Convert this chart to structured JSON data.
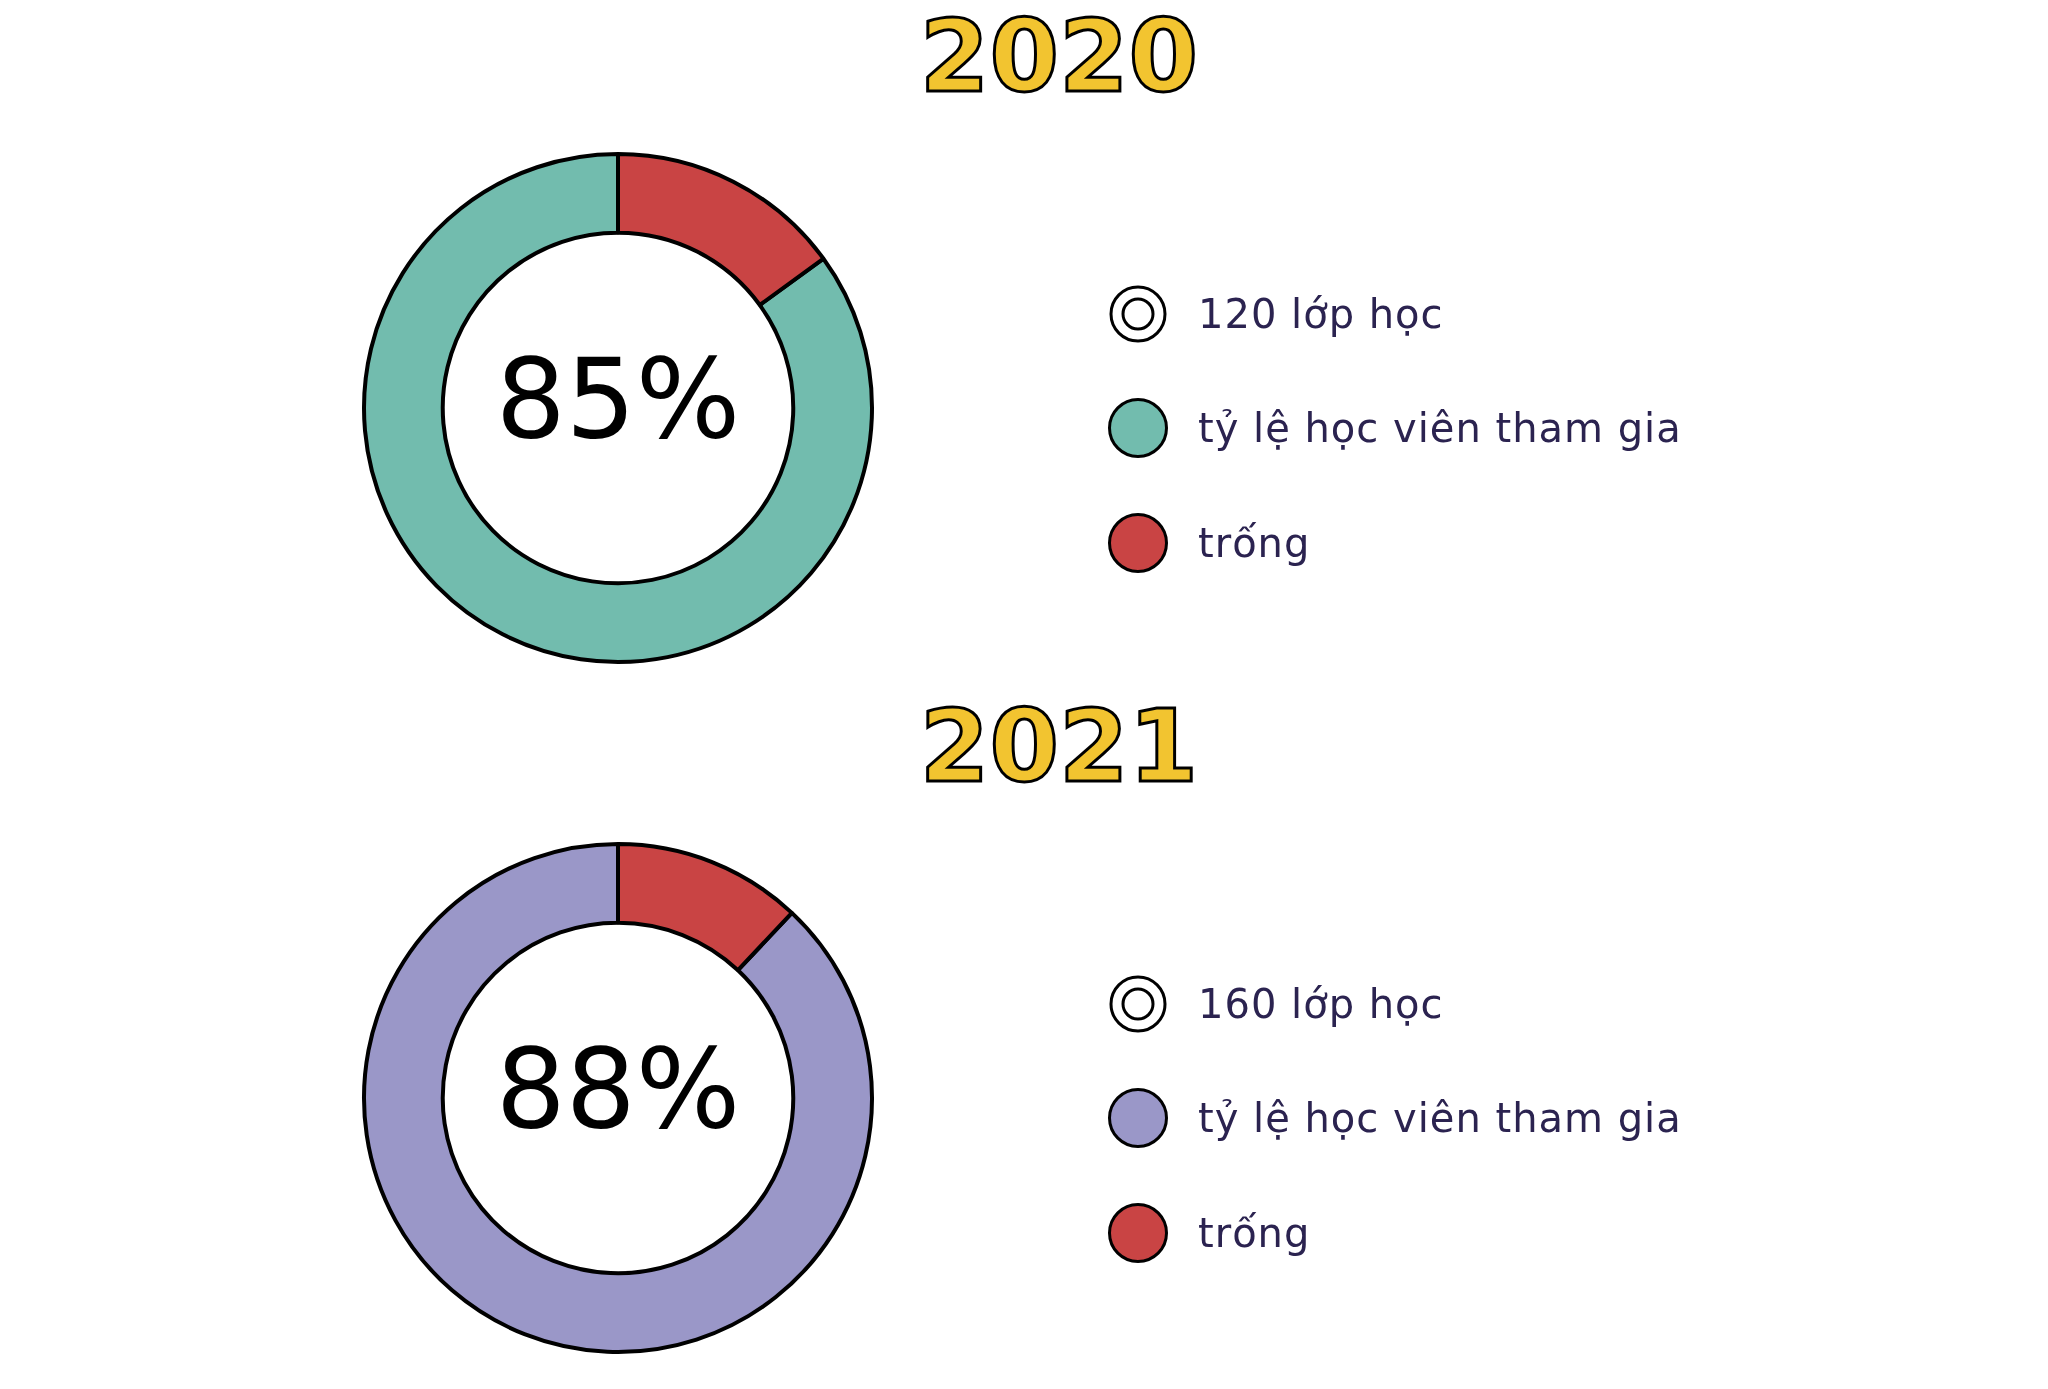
{
  "chart_data": [
    {
      "type": "donut",
      "title": "2020",
      "categories": [
        "tỷ lệ học viên tham gia",
        "trống"
      ],
      "values": [
        85,
        15
      ],
      "colors": [
        "#72bcae",
        "#c94444"
      ],
      "value_labels": [
        "85%",
        null
      ],
      "legend": "right",
      "annotations": [
        "120 lớp học"
      ]
    },
    {
      "type": "donut",
      "title": "2021",
      "categories": [
        "tỷ lệ học viên tham gia",
        "trống"
      ],
      "values": [
        88,
        12
      ],
      "colors": [
        "#9a97c8",
        "#c94444"
      ],
      "value_labels": [
        "88%",
        null
      ],
      "legend": "right",
      "annotations": [
        "160 lớp học"
      ]
    }
  ]
}
